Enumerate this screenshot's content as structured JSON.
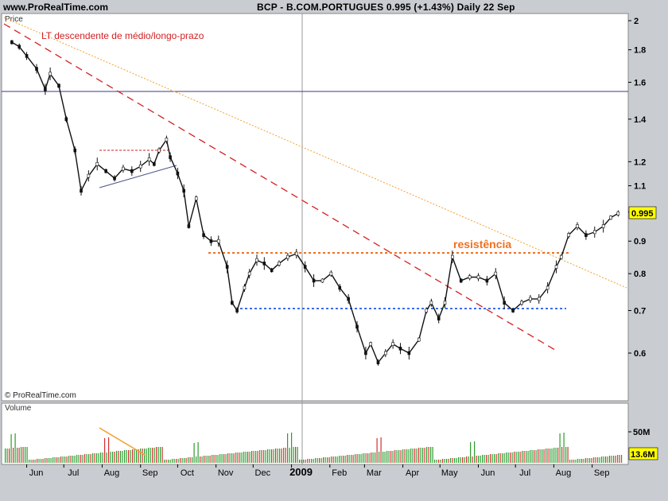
{
  "header": {
    "site": "www.ProRealTime.com",
    "title": "BCP - B.COM.PORTUGUES    0.995 (+1.43%)    Daily  22 Sep"
  },
  "price_panel": {
    "label": "Price",
    "copyright": "© ProRealTime.com",
    "annotation_trend": "LT descendente de médio/longo-prazo",
    "annotation_resistance": "resistência",
    "last_price_badge": "0.995"
  },
  "volume_panel": {
    "label": "Volume",
    "tick_50m": "50M",
    "last_volume_badge": "13.6M"
  },
  "colors": {
    "up": "#2e9b2e",
    "down": "#d13030",
    "trend_red": "#d42020",
    "trend_orange": "#f0a030",
    "resistance": "#f07020",
    "support": "#3a6cf0",
    "horizontal_navy": "#3a3a8c",
    "badge": "#ffff00"
  },
  "chart_data": [
    {
      "type": "line",
      "title": "BCP - B.COM.PORTUGUES",
      "scale": "log",
      "x_ticks": [
        "Jun",
        "Jul",
        "Aug",
        "Sep",
        "Oct",
        "Nov",
        "Dec",
        "2009",
        "Feb",
        "Mar",
        "Apr",
        "May",
        "Jun",
        "Jul",
        "Aug",
        "Sep"
      ],
      "y_ticks": [
        "2",
        "1.8",
        "1.6",
        "1.4",
        "1.2",
        "1.1",
        "1",
        "0.9",
        "0.8",
        "0.7",
        "0.6"
      ],
      "y_tick_values": [
        2,
        1.8,
        1.6,
        1.4,
        1.2,
        1.1,
        1.0,
        0.9,
        0.8,
        0.7,
        0.6
      ],
      "ylim": [
        0.5,
        2.05
      ],
      "series": [
        {
          "dates": [
            "2008-05-20",
            "2008-05-26",
            "2008-06-01",
            "2008-06-09",
            "2008-06-16",
            "2008-06-20",
            "2008-06-27",
            "2008-07-03",
            "2008-07-10",
            "2008-07-15",
            "2008-07-21",
            "2008-07-28",
            "2008-08-04",
            "2008-08-11",
            "2008-08-18",
            "2008-08-25",
            "2008-09-01",
            "2008-09-08",
            "2008-09-12",
            "2008-09-16",
            "2008-09-22",
            "2008-09-25",
            "2008-10-01",
            "2008-10-06",
            "2008-10-10",
            "2008-10-16",
            "2008-10-22",
            "2008-10-28",
            "2008-11-03",
            "2008-11-10",
            "2008-11-14",
            "2008-11-18",
            "2008-11-24",
            "2008-11-28",
            "2008-12-04",
            "2008-12-10",
            "2008-12-16",
            "2008-12-22",
            "2008-12-29",
            "2009-01-05",
            "2009-01-12",
            "2009-01-19",
            "2009-01-26",
            "2009-02-02",
            "2009-02-09",
            "2009-02-16",
            "2009-02-23",
            "2009-03-02",
            "2009-03-06",
            "2009-03-12",
            "2009-03-18",
            "2009-03-24",
            "2009-03-30",
            "2009-04-06",
            "2009-04-14",
            "2009-04-20",
            "2009-04-24",
            "2009-04-30",
            "2009-05-05",
            "2009-05-11",
            "2009-05-18",
            "2009-05-25",
            "2009-06-01",
            "2009-06-08",
            "2009-06-15",
            "2009-06-22",
            "2009-06-29",
            "2009-07-06",
            "2009-07-13",
            "2009-07-20",
            "2009-07-27",
            "2009-08-03",
            "2009-08-07",
            "2009-08-13",
            "2009-08-20",
            "2009-08-27",
            "2009-09-03",
            "2009-09-10",
            "2009-09-16",
            "2009-09-22"
          ],
          "values": [
            1.85,
            1.82,
            1.76,
            1.68,
            1.56,
            1.65,
            1.58,
            1.4,
            1.25,
            1.08,
            1.14,
            1.19,
            1.16,
            1.13,
            1.17,
            1.16,
            1.18,
            1.21,
            1.19,
            1.25,
            1.3,
            1.22,
            1.15,
            1.08,
            0.95,
            1.05,
            0.92,
            0.9,
            0.9,
            0.82,
            0.72,
            0.7,
            0.76,
            0.8,
            0.84,
            0.83,
            0.81,
            0.83,
            0.85,
            0.86,
            0.82,
            0.78,
            0.78,
            0.8,
            0.76,
            0.73,
            0.66,
            0.6,
            0.62,
            0.58,
            0.6,
            0.62,
            0.61,
            0.6,
            0.63,
            0.7,
            0.72,
            0.68,
            0.72,
            0.85,
            0.78,
            0.79,
            0.79,
            0.78,
            0.8,
            0.72,
            0.7,
            0.72,
            0.73,
            0.73,
            0.76,
            0.82,
            0.85,
            0.92,
            0.95,
            0.92,
            0.93,
            0.95,
            0.98,
            0.995
          ]
        }
      ],
      "annotations": [
        "LT descendente de médio/longo-prazo",
        "resistência"
      ],
      "grid": false
    },
    {
      "type": "bar",
      "title": "Volume",
      "y_ticks": [
        "50M"
      ],
      "last_value_label": "13.6M"
    }
  ]
}
